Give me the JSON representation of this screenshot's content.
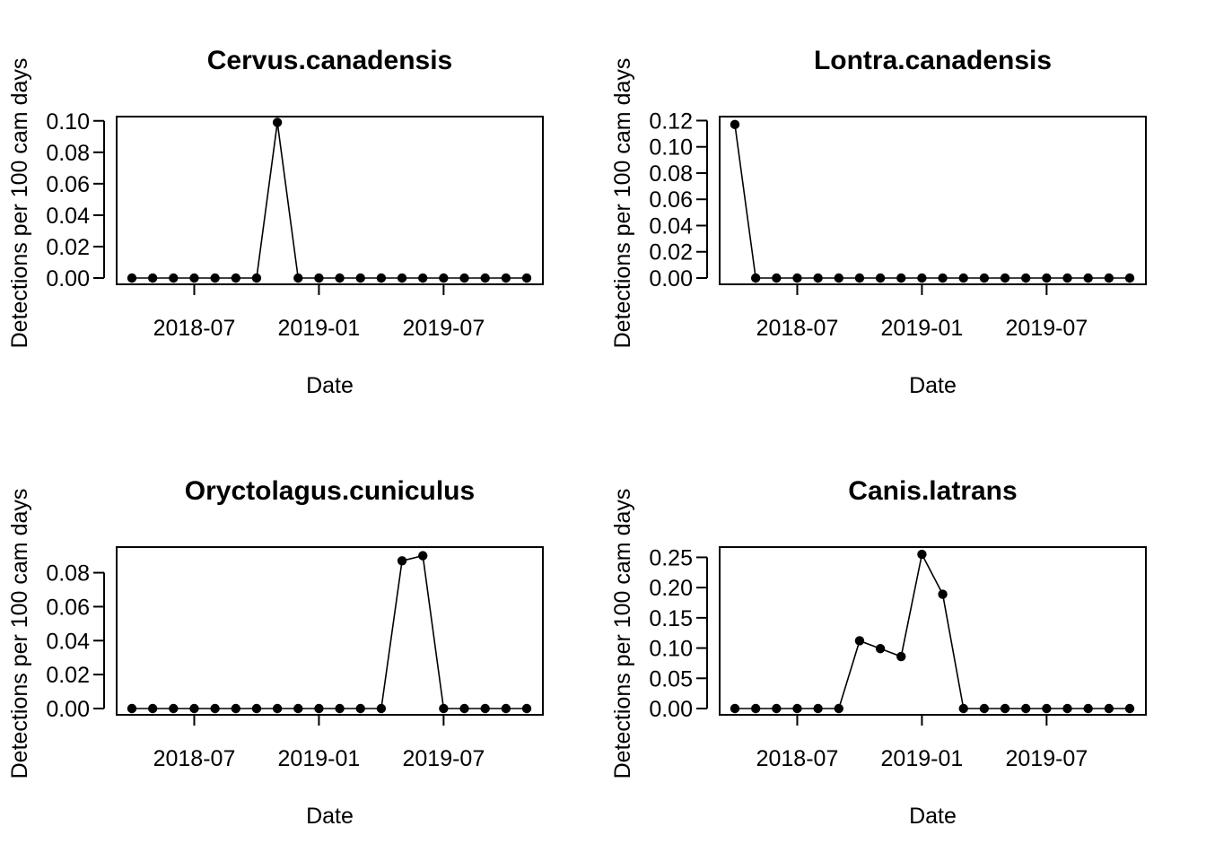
{
  "chart_data": [
    {
      "type": "line",
      "title": "Cervus.canadensis",
      "xlabel": "Date",
      "ylabel": "Detections per 100 cam days",
      "x": [
        "2018-04",
        "2018-05",
        "2018-06",
        "2018-07",
        "2018-08",
        "2018-09",
        "2018-10",
        "2018-11",
        "2018-12",
        "2019-01",
        "2019-02",
        "2019-03",
        "2019-04",
        "2019-05",
        "2019-06",
        "2019-07",
        "2019-08",
        "2019-09",
        "2019-10",
        "2019-11"
      ],
      "y": [
        0,
        0,
        0,
        0,
        0,
        0,
        0,
        0.099,
        0,
        0,
        0,
        0,
        0,
        0,
        0,
        0,
        0,
        0,
        0,
        0
      ],
      "yticks": [
        "0.00",
        "0.02",
        "0.04",
        "0.06",
        "0.08",
        "0.10"
      ],
      "ylim": [
        0,
        0.101
      ],
      "xticks": [
        "2018-07",
        "2019-01",
        "2019-07"
      ],
      "grid": false
    },
    {
      "type": "line",
      "title": "Lontra.canadensis",
      "xlabel": "Date",
      "ylabel": "Detections per 100 cam days",
      "x": [
        "2018-04",
        "2018-05",
        "2018-06",
        "2018-07",
        "2018-08",
        "2018-09",
        "2018-10",
        "2018-11",
        "2018-12",
        "2019-01",
        "2019-02",
        "2019-03",
        "2019-04",
        "2019-05",
        "2019-06",
        "2019-07",
        "2019-08",
        "2019-09",
        "2019-10",
        "2019-11"
      ],
      "y": [
        0.117,
        0,
        0,
        0,
        0,
        0,
        0,
        0,
        0,
        0,
        0,
        0,
        0,
        0,
        0,
        0,
        0,
        0,
        0,
        0
      ],
      "yticks": [
        "0.00",
        "0.02",
        "0.04",
        "0.06",
        "0.08",
        "0.10",
        "0.12"
      ],
      "ylim": [
        0,
        0.121
      ],
      "xticks": [
        "2018-07",
        "2019-01",
        "2019-07"
      ],
      "grid": false
    },
    {
      "type": "line",
      "title": "Oryctolagus.cuniculus",
      "xlabel": "Date",
      "ylabel": "Detections per 100 cam days",
      "x": [
        "2018-04",
        "2018-05",
        "2018-06",
        "2018-07",
        "2018-08",
        "2018-09",
        "2018-10",
        "2018-11",
        "2018-12",
        "2019-01",
        "2019-02",
        "2019-03",
        "2019-04",
        "2019-05",
        "2019-06",
        "2019-07",
        "2019-08",
        "2019-09",
        "2019-10",
        "2019-11"
      ],
      "y": [
        0,
        0,
        0,
        0,
        0,
        0,
        0,
        0,
        0,
        0,
        0,
        0,
        0,
        0.087,
        0.09,
        0,
        0,
        0,
        0,
        0
      ],
      "yticks": [
        "0.00",
        "0.02",
        "0.04",
        "0.06",
        "0.08"
      ],
      "ylim": [
        0,
        0.0935
      ],
      "xticks": [
        "2018-07",
        "2019-01",
        "2019-07"
      ],
      "grid": false
    },
    {
      "type": "line",
      "title": "Canis.latrans",
      "xlabel": "Date",
      "ylabel": "Detections per 100 cam days",
      "x": [
        "2018-04",
        "2018-05",
        "2018-06",
        "2018-07",
        "2018-08",
        "2018-09",
        "2018-10",
        "2018-11",
        "2018-12",
        "2019-01",
        "2019-02",
        "2019-03",
        "2019-04",
        "2019-05",
        "2019-06",
        "2019-07",
        "2019-08",
        "2019-09",
        "2019-10",
        "2019-11"
      ],
      "y": [
        0,
        0,
        0,
        0,
        0,
        0,
        0.112,
        0.099,
        0.086,
        0.255,
        0.189,
        0,
        0,
        0,
        0,
        0,
        0,
        0,
        0,
        0
      ],
      "yticks": [
        "0.00",
        "0.05",
        "0.10",
        "0.15",
        "0.20",
        "0.25"
      ],
      "ylim": [
        0,
        0.2625
      ],
      "xticks": [
        "2018-07",
        "2019-01",
        "2019-07"
      ],
      "grid": false
    }
  ]
}
